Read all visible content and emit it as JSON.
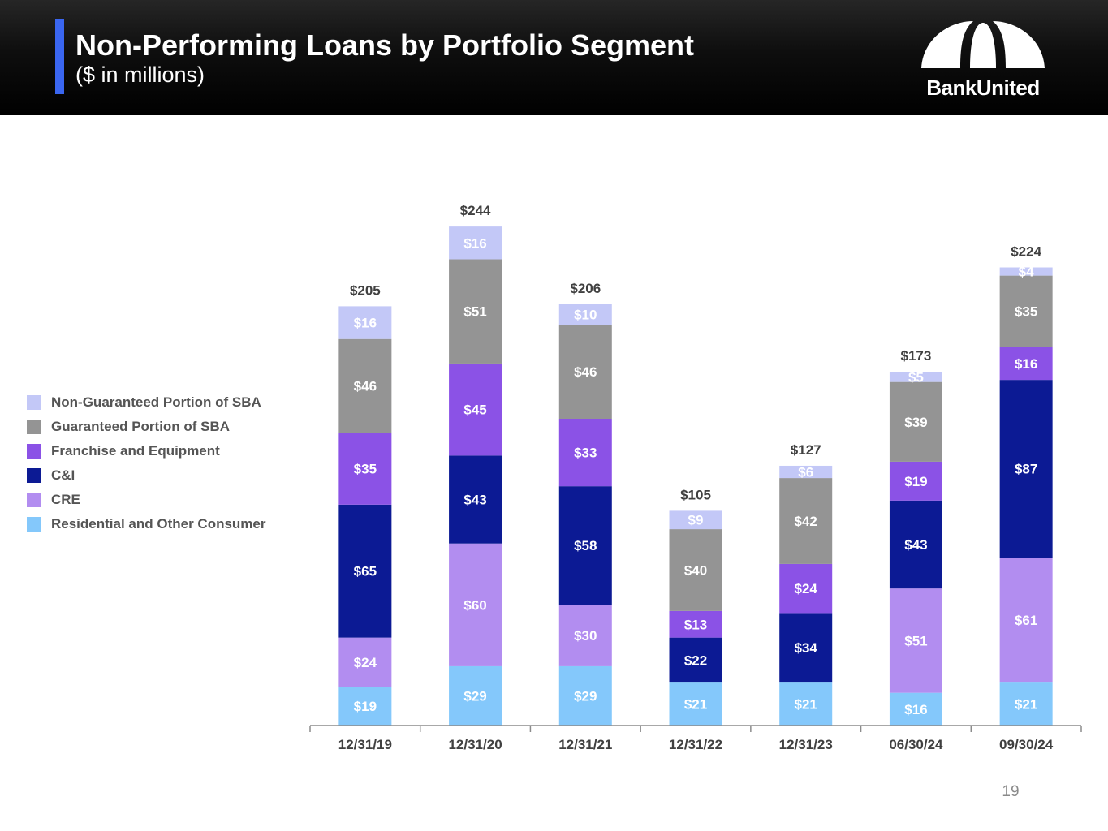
{
  "header": {
    "title": "Non-Performing Loans by Portfolio Segment",
    "subtitle": "($ in millions)",
    "logo_text": "BankUnited"
  },
  "page_number": "19",
  "legend": [
    {
      "label": "Non-Guaranteed Portion of SBA",
      "color": "#c3c8f7"
    },
    {
      "label": "Guaranteed Portion of SBA",
      "color": "#949494"
    },
    {
      "label": "Franchise and Equipment",
      "color": "#8b52e6"
    },
    {
      "label": "C&I",
      "color": "#0c1a94"
    },
    {
      "label": "CRE",
      "color": "#b28df0"
    },
    {
      "label": "Residential and Other Consumer",
      "color": "#84c8fb"
    }
  ],
  "chart_data": {
    "type": "bar",
    "stacked": true,
    "title": "Non-Performing Loans by Portfolio Segment",
    "ylabel": "$ in millions",
    "categories": [
      "12/31/19",
      "12/31/20",
      "12/31/21",
      "12/31/22",
      "12/31/23",
      "06/30/24",
      "09/30/24"
    ],
    "totals": [
      "$205",
      "$244",
      "$206",
      "$105",
      "$127",
      "$173",
      "$224"
    ],
    "total_values": [
      205,
      244,
      206,
      105,
      127,
      173,
      224
    ],
    "ylim": [
      0,
      244
    ],
    "series": [
      {
        "name": "Residential and Other Consumer",
        "color": "#84c8fb",
        "values": [
          19,
          29,
          29,
          21,
          21,
          16,
          21
        ],
        "labels": [
          "$19",
          "$29",
          "$29",
          "$21",
          "$21",
          "$16",
          "$21"
        ]
      },
      {
        "name": "CRE",
        "color": "#b28df0",
        "values": [
          24,
          60,
          30,
          0,
          0,
          51,
          61
        ],
        "labels": [
          "$24",
          "$60",
          "$30",
          "",
          "",
          "$51",
          "$61"
        ]
      },
      {
        "name": "C&I",
        "color": "#0c1a94",
        "values": [
          65,
          43,
          58,
          22,
          34,
          43,
          87
        ],
        "labels": [
          "$65",
          "$43",
          "$58",
          "$22",
          "$34",
          "$43",
          "$87"
        ]
      },
      {
        "name": "Franchise and Equipment",
        "color": "#8b52e6",
        "values": [
          35,
          45,
          33,
          13,
          24,
          19,
          16
        ],
        "labels": [
          "$35",
          "$45",
          "$33",
          "$13",
          "$24",
          "$19",
          "$16"
        ]
      },
      {
        "name": "Guaranteed Portion of SBA",
        "color": "#949494",
        "values": [
          46,
          51,
          46,
          40,
          42,
          39,
          35
        ],
        "labels": [
          "$46",
          "$51",
          "$46",
          "$40",
          "$42",
          "$39",
          "$35"
        ]
      },
      {
        "name": "Non-Guaranteed Portion of SBA",
        "color": "#c3c8f7",
        "values": [
          16,
          16,
          10,
          9,
          6,
          5,
          4
        ],
        "labels": [
          "$16",
          "$16",
          "$10",
          "$9",
          "$6",
          "$5",
          "$4"
        ]
      }
    ]
  }
}
